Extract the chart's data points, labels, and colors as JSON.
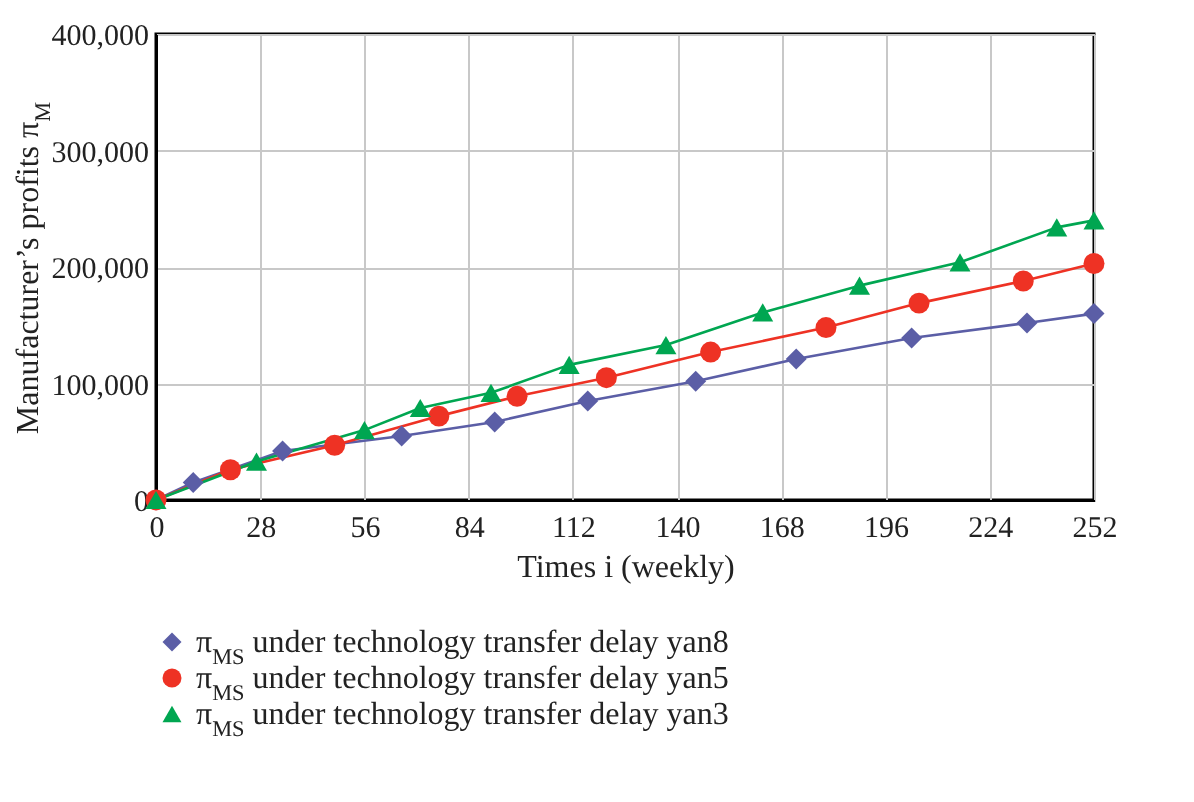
{
  "chart_data": {
    "type": "line",
    "xlabel": "Times i (weekly)",
    "ylabel": "Manufacturer’s profits π$_{M}$",
    "xlim": [
      0,
      252
    ],
    "xticks": [
      0,
      28,
      56,
      84,
      112,
      140,
      168,
      196,
      224,
      252
    ],
    "ylim": [
      0,
      400000
    ],
    "yticks": [
      0,
      {
        "value": 100000,
        "label": "100,000"
      },
      {
        "value": 200000,
        "label": "200,000"
      },
      {
        "value": 300000,
        "label": "300,000"
      },
      {
        "value": 400000,
        "label": "400,000"
      }
    ],
    "grid": true,
    "legend": "bottom",
    "series": [
      {
        "name": "π$_{MS}$ under technology transfer delay yan8",
        "color": "#5b5ea6",
        "marker": "diamond",
        "x": [
          0,
          10,
          34,
          66,
          91,
          116,
          145,
          172,
          203,
          234,
          252
        ],
        "values": [
          0,
          15000,
          42000,
          55000,
          67000,
          85000,
          102000,
          121000,
          139000,
          152000,
          160000
        ]
      },
      {
        "name": "π$_{MS}$ under technology transfer delay yan5",
        "color": "#ee3224",
        "marker": "circle",
        "x": [
          0,
          20,
          48,
          76,
          97,
          121,
          149,
          180,
          205,
          233,
          252
        ],
        "values": [
          0,
          26000,
          47000,
          72000,
          89000,
          105000,
          127000,
          148000,
          169000,
          188000,
          203000
        ]
      },
      {
        "name": "π$_{MS}$ under technology transfer delay yan3",
        "color": "#00a651",
        "marker": "triangle",
        "x": [
          0,
          27,
          56,
          71,
          90,
          111,
          137,
          163,
          189,
          216,
          242,
          252
        ],
        "values": [
          0,
          33000,
          60000,
          79000,
          92000,
          116000,
          133000,
          161000,
          184000,
          204000,
          234000,
          240000
        ]
      }
    ]
  }
}
